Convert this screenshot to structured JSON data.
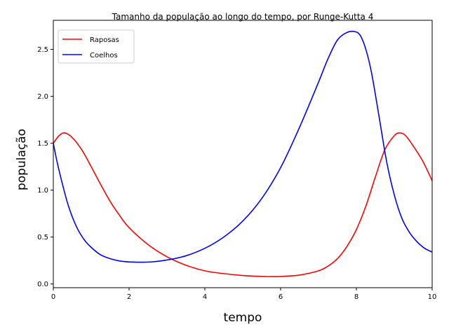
{
  "chart_data": {
    "type": "line",
    "title": "Tamanho da população ao longo do tempo, por Runge-Kutta 4",
    "xlabel": "tempo",
    "ylabel": "população",
    "xlim": [
      0,
      10
    ],
    "ylim": [
      -0.04,
      2.81
    ],
    "xticks": [
      0,
      2,
      4,
      6,
      8,
      10
    ],
    "xtick_labels": [
      "0",
      "2",
      "4",
      "6",
      "8",
      "10"
    ],
    "yticks": [
      0.0,
      0.5,
      1.0,
      1.5,
      2.0,
      2.5
    ],
    "ytick_labels": [
      "0.0",
      "0.5",
      "1.0",
      "1.5",
      "2.0",
      "2.5"
    ],
    "grid": false,
    "legend_position": "upper-left",
    "series": [
      {
        "name": "Raposas",
        "color": "#ff0000",
        "x": [
          0,
          0.15,
          0.3,
          0.5,
          0.75,
          1.0,
          1.25,
          1.5,
          1.75,
          2.0,
          2.5,
          3.0,
          3.5,
          4.0,
          4.5,
          5.0,
          5.5,
          5.8,
          6.0,
          6.5,
          7.0,
          7.25,
          7.5,
          7.75,
          8.0,
          8.25,
          8.5,
          8.75,
          9.0,
          9.15,
          9.3,
          9.5,
          9.75,
          10.0
        ],
        "y": [
          1.5,
          1.58,
          1.61,
          1.56,
          1.43,
          1.25,
          1.06,
          0.88,
          0.73,
          0.6,
          0.42,
          0.29,
          0.2,
          0.14,
          0.11,
          0.09,
          0.08,
          0.078,
          0.08,
          0.095,
          0.14,
          0.19,
          0.27,
          0.4,
          0.58,
          0.83,
          1.14,
          1.43,
          1.58,
          1.61,
          1.58,
          1.47,
          1.31,
          1.1
        ]
      },
      {
        "name": "Coelhos",
        "color": "#0000ff",
        "x": [
          0,
          0.1,
          0.25,
          0.4,
          0.6,
          0.8,
          1.0,
          1.25,
          1.5,
          1.75,
          2.0,
          2.3,
          2.6,
          3.0,
          3.5,
          4.0,
          4.5,
          5.0,
          5.5,
          6.0,
          6.5,
          7.0,
          7.25,
          7.5,
          7.75,
          7.95,
          8.1,
          8.25,
          8.4,
          8.6,
          8.8,
          9.0,
          9.2,
          9.4,
          9.6,
          9.8,
          10.0
        ],
        "y": [
          1.5,
          1.3,
          1.05,
          0.83,
          0.62,
          0.48,
          0.39,
          0.31,
          0.27,
          0.245,
          0.235,
          0.232,
          0.235,
          0.255,
          0.3,
          0.38,
          0.5,
          0.67,
          0.91,
          1.24,
          1.67,
          2.15,
          2.4,
          2.6,
          2.68,
          2.69,
          2.65,
          2.5,
          2.25,
          1.78,
          1.3,
          0.95,
          0.7,
          0.55,
          0.45,
          0.38,
          0.34
        ]
      }
    ]
  }
}
